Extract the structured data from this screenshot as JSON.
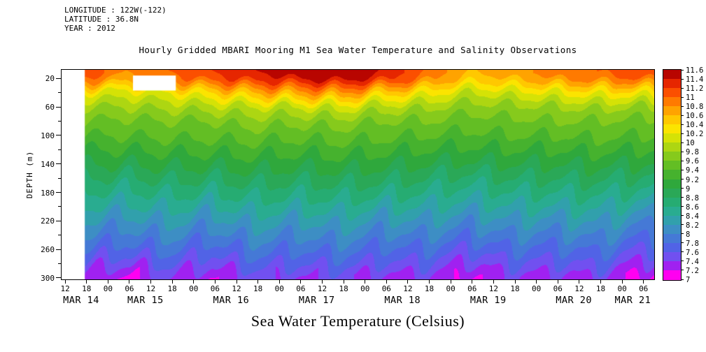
{
  "meta": {
    "longitude": "LONGITUDE : 122W(-122)",
    "latitude": "LATITUDE : 36.8N",
    "year": "YEAR : 2012"
  },
  "title": "Hourly Gridded MBARI Mooring M1 Sea Water Temperature and Salinity Observations",
  "caption": "Sea Water Temperature (Celsius)",
  "chart_data": {
    "type": "heatmap",
    "title": "Hourly Gridded MBARI Mooring M1 Sea Water Temperature and Salinity Observations",
    "xlabel": "",
    "ylabel": "DEPTH (m)",
    "x_unit": "hours since MAR 14 00:00 2012",
    "x_range": [
      11,
      177
    ],
    "y_range_m": [
      8,
      302
    ],
    "y_ticks": [
      20,
      60,
      100,
      140,
      180,
      220,
      260,
      300
    ],
    "y_minor_ticks": [
      40,
      80,
      120,
      160,
      200,
      240,
      280
    ],
    "hour_ticks": [
      [
        12,
        "12"
      ],
      [
        18,
        "18"
      ],
      [
        24,
        "00"
      ],
      [
        30,
        "06"
      ],
      [
        36,
        "12"
      ],
      [
        42,
        "18"
      ],
      [
        48,
        "00"
      ],
      [
        54,
        "06"
      ],
      [
        60,
        "12"
      ],
      [
        66,
        "18"
      ],
      [
        72,
        "00"
      ],
      [
        78,
        "06"
      ],
      [
        84,
        "12"
      ],
      [
        90,
        "18"
      ],
      [
        96,
        "00"
      ],
      [
        102,
        "06"
      ],
      [
        108,
        "12"
      ],
      [
        114,
        "18"
      ],
      [
        120,
        "00"
      ],
      [
        126,
        "06"
      ],
      [
        132,
        "12"
      ],
      [
        138,
        "18"
      ],
      [
        144,
        "00"
      ],
      [
        150,
        "06"
      ],
      [
        156,
        "12"
      ],
      [
        162,
        "18"
      ],
      [
        168,
        "00"
      ],
      [
        174,
        "06"
      ]
    ],
    "date_labels": [
      [
        16.5,
        "MAR 14"
      ],
      [
        34.5,
        "MAR 15"
      ],
      [
        58.5,
        "MAR 16"
      ],
      [
        82.5,
        "MAR 17"
      ],
      [
        106.5,
        "MAR 18"
      ],
      [
        130.5,
        "MAR 19"
      ],
      [
        154.5,
        "MAR 20"
      ],
      [
        171,
        "MAR 21"
      ]
    ],
    "colorbar": {
      "min": 7,
      "max": 11.6,
      "step": 0.2,
      "tick_labels": [
        "11.6",
        "11.4",
        "11.2",
        "11",
        "10.8",
        "10.6",
        "10.4",
        "10.2",
        "10",
        "9.8",
        "9.6",
        "9.4",
        "9.2",
        "9",
        "8.8",
        "8.6",
        "8.4",
        "8.2",
        "8",
        "7.8",
        "7.6",
        "7.4",
        "7.2",
        "7"
      ],
      "colors": [
        "#FF00F0",
        "#A021F0",
        "#7150F0",
        "#5163E6",
        "#4579D6",
        "#3D8EC4",
        "#31A0AC",
        "#29AC90",
        "#26AC72",
        "#2AA857",
        "#2FA83C",
        "#46B22E",
        "#63BE24",
        "#86CA1C",
        "#ADD612",
        "#D5E206",
        "#FBE400",
        "#FFC800",
        "#FFA300",
        "#FF7A00",
        "#FB4F00",
        "#E62600",
        "#B80500"
      ]
    },
    "grid": {
      "times_h": [
        17,
        29,
        41,
        53,
        65,
        77,
        89,
        101,
        113,
        125,
        137,
        149,
        161,
        173
      ],
      "depths_m": [
        10,
        20,
        40,
        60,
        80,
        100,
        120,
        140,
        160,
        180,
        200,
        220,
        240,
        260,
        280,
        300
      ],
      "temps_c": [
        [
          11.2,
          11.0,
          10.2,
          9.8,
          9.6,
          9.4,
          9.2,
          9.0,
          8.8,
          8.6,
          8.4,
          8.2,
          8.0,
          7.8,
          7.6,
          7.3
        ],
        [
          10.8,
          10.7,
          10.1,
          9.8,
          9.55,
          9.4,
          9.2,
          9.0,
          8.75,
          8.55,
          8.35,
          8.1,
          7.9,
          7.7,
          7.4,
          7.1
        ],
        [
          11.0,
          10.9,
          10.2,
          9.85,
          9.6,
          9.45,
          9.25,
          9.05,
          8.85,
          8.65,
          8.45,
          8.25,
          8.05,
          7.85,
          7.65,
          7.4
        ],
        [
          11.2,
          11.1,
          10.4,
          9.9,
          9.6,
          9.45,
          9.25,
          9.05,
          8.8,
          8.6,
          8.35,
          8.1,
          7.9,
          7.65,
          7.45,
          7.15
        ],
        [
          11.4,
          11.3,
          10.6,
          10.0,
          9.7,
          9.5,
          9.3,
          9.1,
          8.9,
          8.7,
          8.5,
          8.3,
          8.1,
          7.9,
          7.7,
          7.45
        ],
        [
          11.5,
          11.4,
          10.7,
          10.0,
          9.65,
          9.45,
          9.25,
          9.05,
          8.85,
          8.65,
          8.45,
          8.2,
          8.0,
          7.8,
          7.6,
          7.35
        ],
        [
          11.6,
          11.5,
          10.8,
          10.1,
          9.7,
          9.5,
          9.3,
          9.1,
          8.9,
          8.7,
          8.5,
          8.3,
          8.1,
          7.9,
          7.7,
          7.45
        ],
        [
          11.4,
          11.3,
          10.5,
          9.9,
          9.6,
          9.45,
          9.25,
          9.05,
          8.85,
          8.65,
          8.4,
          8.15,
          7.95,
          7.75,
          7.55,
          7.3
        ],
        [
          11.0,
          10.9,
          10.3,
          9.85,
          9.6,
          9.4,
          9.2,
          9.0,
          8.8,
          8.6,
          8.4,
          8.2,
          8.0,
          7.8,
          7.6,
          7.4
        ],
        [
          10.6,
          10.5,
          10.0,
          9.7,
          9.5,
          9.35,
          9.15,
          8.95,
          8.7,
          8.5,
          8.3,
          8.05,
          7.85,
          7.6,
          7.35,
          7.1
        ],
        [
          10.7,
          10.6,
          10.1,
          9.75,
          9.55,
          9.4,
          9.2,
          9.0,
          8.8,
          8.6,
          8.4,
          8.2,
          8.0,
          7.8,
          7.6,
          7.4
        ],
        [
          10.9,
          10.8,
          10.2,
          9.8,
          9.6,
          9.4,
          9.2,
          9.0,
          8.8,
          8.6,
          8.4,
          8.15,
          7.95,
          7.75,
          7.55,
          7.3
        ],
        [
          11.0,
          10.9,
          10.3,
          9.85,
          9.6,
          9.45,
          9.25,
          9.05,
          8.85,
          8.65,
          8.45,
          8.25,
          8.05,
          7.85,
          7.65,
          7.4
        ],
        [
          11.2,
          11.0,
          10.3,
          9.8,
          9.55,
          9.4,
          9.2,
          9.0,
          8.75,
          8.55,
          8.3,
          8.05,
          7.85,
          7.6,
          7.35,
          7.1
        ]
      ]
    },
    "missing": [
      {
        "t0": 11,
        "t1": 17.5,
        "d0": 8,
        "d1": 302
      },
      {
        "t0": 31,
        "t1": 43,
        "d0": 16,
        "d1": 37
      }
    ],
    "wave": {
      "period_h": 12.4,
      "amp_m": 12,
      "period2_h": 6.3,
      "amp2_m": 5,
      "phase_per_m": 0.035
    }
  }
}
